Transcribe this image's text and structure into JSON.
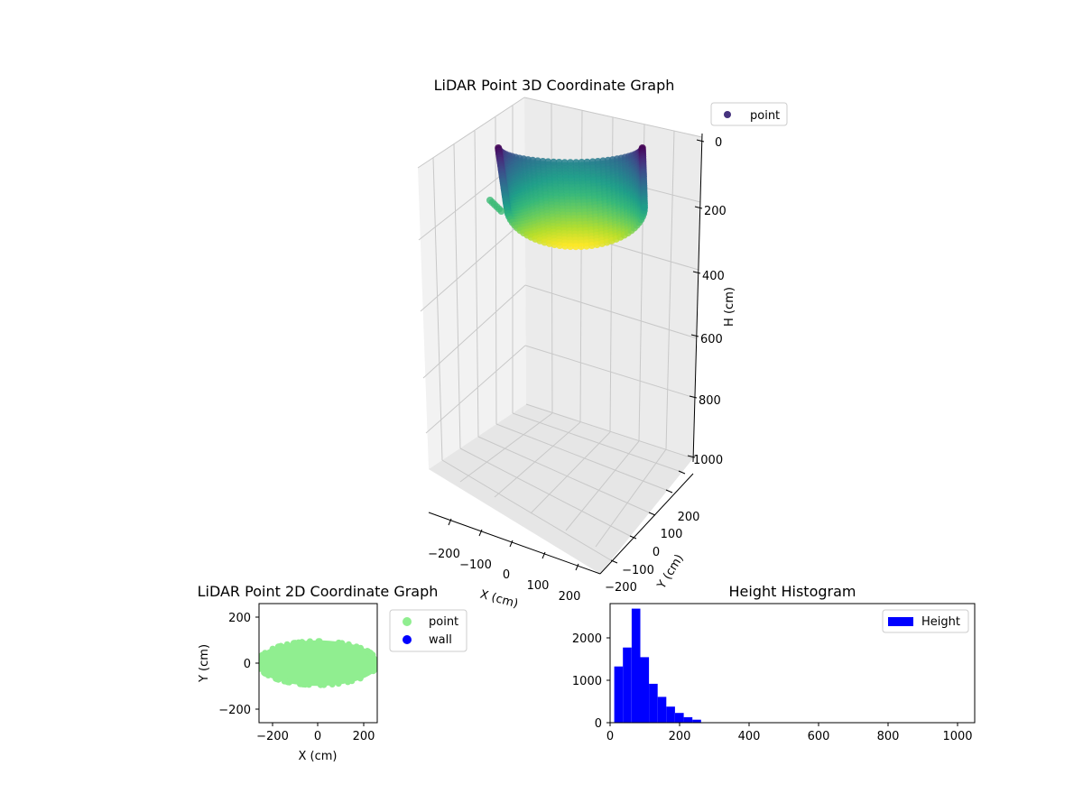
{
  "colors": {
    "point_2d": "#90ee90",
    "wall_2d": "#0000ff",
    "hist_bar": "#0000ff",
    "point_3d_legend": "#46337e",
    "viridis": [
      "#440154",
      "#482878",
      "#3e4a89",
      "#31688e",
      "#26828e",
      "#1f9e89",
      "#35b779",
      "#6dcd59",
      "#b4de2c",
      "#fde725"
    ]
  },
  "chart_data": [
    {
      "type": "scatter",
      "projection": "3d",
      "title": "LiDAR Point 3D Coordinate Graph",
      "xlabel": "X (cm)",
      "ylabel": "Y (cm)",
      "zlabel": "H (cm)",
      "xticks": [
        "−200",
        "−100",
        "0",
        "100",
        "200"
      ],
      "yticks": [
        "−200",
        "−100",
        "0",
        "100",
        "200"
      ],
      "zticks": [
        "0",
        "200",
        "400",
        "600",
        "800",
        "1000"
      ],
      "xlim": [
        -250,
        250
      ],
      "ylim": [
        -250,
        250
      ],
      "zlim": [
        1050,
        0
      ],
      "legend": [
        "point"
      ],
      "legend_position": "upper-right",
      "colormap": "viridis",
      "color_by": "height",
      "note_shape": "bowl-shaped point cloud, x approx -250..250, y approx -100..100, height approx 0..250"
    },
    {
      "type": "scatter",
      "title": "LiDAR Point 2D Coordinate Graph",
      "xlabel": "X (cm)",
      "ylabel": "Y (cm)",
      "xticks": [
        "−200",
        "0",
        "200"
      ],
      "yticks": [
        "−200",
        "0",
        "200"
      ],
      "xlim": [
        -260,
        260
      ],
      "ylim": [
        -260,
        260
      ],
      "series": [
        {
          "name": "point",
          "shape": "ellipse",
          "center": [
            0,
            0
          ],
          "x_extent": [
            -250,
            250
          ],
          "y_extent": [
            -100,
            100
          ]
        },
        {
          "name": "wall",
          "values": []
        }
      ],
      "legend_position": "outside-right"
    },
    {
      "type": "bar",
      "subtype": "histogram",
      "title": "Height Histogram",
      "legend": [
        "Height"
      ],
      "legend_position": "upper-right",
      "xticks": [
        "0",
        "200",
        "400",
        "600",
        "800",
        "1000"
      ],
      "yticks": [
        "0",
        "1000",
        "2000"
      ],
      "xlim": [
        0,
        1050
      ],
      "ylim": [
        0,
        2820
      ],
      "bins": [
        {
          "x0": 12,
          "x1": 37,
          "count": 1330
        },
        {
          "x0": 37,
          "x1": 62,
          "count": 1780
        },
        {
          "x0": 62,
          "x1": 87,
          "count": 2700
        },
        {
          "x0": 87,
          "x1": 112,
          "count": 1550
        },
        {
          "x0": 112,
          "x1": 137,
          "count": 920
        },
        {
          "x0": 137,
          "x1": 162,
          "count": 610
        },
        {
          "x0": 162,
          "x1": 187,
          "count": 380
        },
        {
          "x0": 187,
          "x1": 212,
          "count": 230
        },
        {
          "x0": 212,
          "x1": 237,
          "count": 130
        },
        {
          "x0": 237,
          "x1": 262,
          "count": 70
        }
      ]
    }
  ]
}
